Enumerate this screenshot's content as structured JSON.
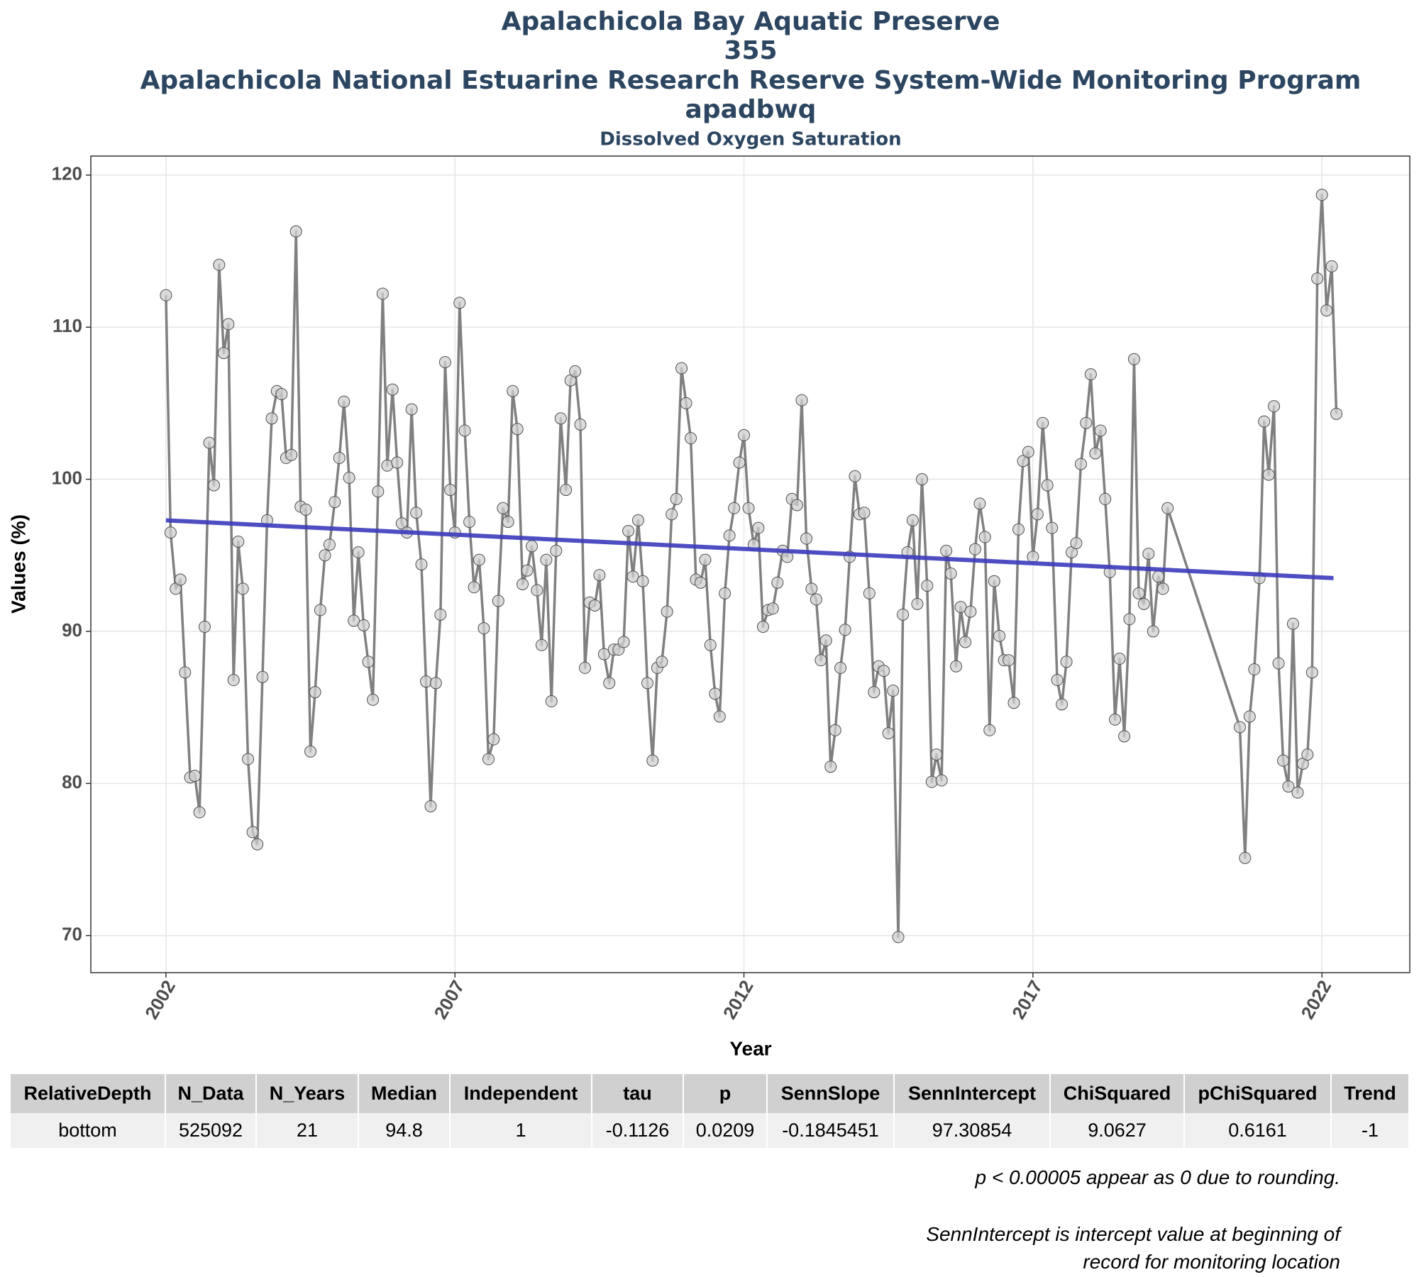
{
  "chart_data": {
    "type": "line",
    "title": [
      "Apalachicola Bay Aquatic Preserve",
      "355",
      "Apalachicola National Estuarine Research Reserve System-Wide Monitoring Program",
      "apadbwq"
    ],
    "subtitle": "Dissolved Oxygen Saturation",
    "xlabel": "Year",
    "ylabel": "Values (%)",
    "xlim": [
      2000.7,
      2023.52
    ],
    "ylim": [
      67.56,
      121.25
    ],
    "xticks": [
      2002,
      2007,
      2012,
      2017,
      2022
    ],
    "yticks": [
      70,
      80,
      90,
      100,
      110,
      120
    ],
    "grid": true,
    "series": [
      {
        "color": "#808080",
        "marker_fill": "#cfcfcf",
        "marker_stroke": "#505050",
        "x": [
          2002,
          2002.08,
          2002.17,
          2002.25,
          2002.33,
          2002.42,
          2002.5,
          2002.58,
          2002.67,
          2002.75,
          2002.83,
          2002.92,
          2003,
          2003.08,
          2003.17,
          2003.25,
          2003.33,
          2003.42,
          2003.5,
          2003.58,
          2003.67,
          2003.75,
          2003.83,
          2003.92,
          2004,
          2004.08,
          2004.17,
          2004.25,
          2004.33,
          2004.42,
          2004.5,
          2004.58,
          2004.67,
          2004.75,
          2004.83,
          2004.92,
          2005,
          2005.08,
          2005.17,
          2005.25,
          2005.33,
          2005.42,
          2005.5,
          2005.58,
          2005.67,
          2005.75,
          2005.83,
          2005.92,
          2006,
          2006.08,
          2006.17,
          2006.25,
          2006.33,
          2006.42,
          2006.5,
          2006.58,
          2006.67,
          2006.75,
          2006.83,
          2006.92,
          2007,
          2007.08,
          2007.17,
          2007.25,
          2007.33,
          2007.42,
          2007.5,
          2007.58,
          2007.67,
          2007.75,
          2007.83,
          2007.92,
          2008,
          2008.08,
          2008.17,
          2008.25,
          2008.33,
          2008.42,
          2008.5,
          2008.58,
          2008.67,
          2008.75,
          2008.83,
          2008.92,
          2009,
          2009.08,
          2009.17,
          2009.25,
          2009.33,
          2009.42,
          2009.5,
          2009.58,
          2009.67,
          2009.75,
          2009.83,
          2009.92,
          2010,
          2010.08,
          2010.17,
          2010.25,
          2010.33,
          2010.42,
          2010.5,
          2010.58,
          2010.67,
          2010.75,
          2010.83,
          2010.92,
          2011,
          2011.08,
          2011.17,
          2011.25,
          2011.33,
          2011.42,
          2011.5,
          2011.58,
          2011.67,
          2011.75,
          2011.83,
          2011.92,
          2012,
          2012.08,
          2012.17,
          2012.25,
          2012.33,
          2012.42,
          2012.5,
          2012.58,
          2012.67,
          2012.75,
          2012.83,
          2012.92,
          2013,
          2013.08,
          2013.17,
          2013.25,
          2013.33,
          2013.42,
          2013.5,
          2013.58,
          2013.67,
          2013.75,
          2013.83,
          2013.92,
          2014,
          2014.08,
          2014.17,
          2014.25,
          2014.33,
          2014.42,
          2014.5,
          2014.58,
          2014.67,
          2014.75,
          2014.83,
          2014.92,
          2015,
          2015.08,
          2015.17,
          2015.25,
          2015.33,
          2015.42,
          2015.5,
          2015.58,
          2015.67,
          2015.75,
          2015.83,
          2015.92,
          2016,
          2016.08,
          2016.17,
          2016.25,
          2016.33,
          2016.42,
          2016.5,
          2016.58,
          2016.67,
          2016.75,
          2016.83,
          2016.92,
          2017,
          2017.08,
          2017.17,
          2017.25,
          2017.33,
          2017.42,
          2017.5,
          2017.58,
          2017.67,
          2017.75,
          2017.83,
          2017.92,
          2018,
          2018.08,
          2018.17,
          2018.25,
          2018.33,
          2018.42,
          2018.5,
          2018.58,
          2018.67,
          2018.75,
          2018.83,
          2018.92,
          2019,
          2019.08,
          2019.17,
          2019.25,
          2019.33,
          2020.58,
          2020.67,
          2020.75,
          2020.83,
          2020.92,
          2021,
          2021.08,
          2021.17,
          2021.25,
          2021.33,
          2021.42,
          2021.5,
          2021.58,
          2021.67,
          2021.75,
          2021.83,
          2021.92,
          2022,
          2022.08,
          2022.17,
          2022.25
        ],
        "values": [
          112.1,
          96.5,
          92.8,
          93.4,
          87.3,
          80.4,
          80.5,
          78.1,
          90.3,
          102.4,
          99.6,
          114.1,
          108.3,
          110.2,
          86.8,
          95.9,
          92.8,
          81.6,
          76.8,
          76.0,
          87.0,
          97.3,
          104.0,
          105.8,
          105.6,
          101.4,
          101.6,
          116.3,
          98.2,
          98.0,
          82.1,
          86.0,
          91.4,
          95.0,
          95.7,
          98.5,
          101.4,
          105.1,
          100.1,
          90.7,
          95.2,
          90.4,
          88.0,
          85.5,
          99.2,
          112.2,
          100.9,
          105.9,
          101.1,
          97.1,
          96.5,
          104.6,
          97.8,
          94.4,
          86.7,
          78.5,
          86.6,
          91.1,
          107.7,
          99.3,
          96.5,
          111.6,
          103.2,
          97.2,
          92.9,
          94.7,
          90.2,
          81.6,
          82.9,
          92.0,
          98.1,
          97.2,
          105.8,
          103.3,
          93.1,
          94.0,
          95.6,
          92.7,
          89.1,
          94.7,
          85.4,
          95.3,
          104.0,
          99.3,
          106.5,
          107.1,
          103.6,
          87.6,
          91.9,
          91.7,
          93.7,
          88.5,
          86.6,
          88.8,
          88.8,
          89.3,
          96.6,
          93.6,
          97.3,
          93.3,
          86.6,
          81.5,
          87.6,
          88.0,
          91.3,
          97.7,
          98.7,
          107.3,
          105.0,
          102.7,
          93.4,
          93.2,
          94.7,
          89.1,
          85.9,
          84.4,
          92.5,
          96.3,
          98.1,
          101.1,
          102.9,
          98.1,
          95.7,
          96.8,
          90.3,
          91.4,
          91.5,
          93.2,
          95.3,
          94.9,
          98.7,
          98.3,
          105.2,
          96.1,
          92.8,
          92.1,
          88.1,
          89.4,
          81.1,
          83.5,
          87.6,
          90.1,
          94.9,
          100.2,
          97.7,
          97.8,
          92.5,
          86.0,
          87.7,
          87.4,
          83.3,
          86.1,
          69.9,
          91.1,
          95.2,
          97.3,
          91.8,
          100.0,
          93.0,
          80.1,
          81.9,
          80.2,
          95.3,
          93.8,
          87.7,
          91.6,
          89.3,
          91.3,
          95.4,
          98.4,
          96.2,
          83.5,
          93.3,
          89.7,
          88.1,
          88.1,
          85.3,
          96.7,
          101.2,
          101.8,
          94.9,
          97.7,
          103.7,
          99.6,
          96.8,
          86.8,
          85.2,
          88.0,
          95.2,
          95.8,
          101.0,
          103.7,
          106.9,
          101.7,
          103.2,
          98.7,
          93.9,
          84.2,
          88.2,
          83.1,
          90.8,
          107.9,
          92.5,
          91.8,
          95.1,
          90.0,
          93.6,
          92.8,
          98.1,
          83.7,
          75.1,
          84.4,
          87.5,
          93.5,
          103.8,
          100.3,
          104.8,
          87.9,
          81.5,
          79.8,
          90.5,
          79.4,
          81.3,
          81.9,
          87.3,
          113.2,
          118.7,
          111.1,
          114.0,
          104.3
        ]
      }
    ],
    "trend": {
      "color": "#3b3bbd",
      "x": [
        2002,
        2022.2
      ],
      "values": [
        97.3,
        93.5
      ]
    }
  },
  "table": {
    "header": [
      "RelativeDepth",
      "N_Data",
      "N_Years",
      "Median",
      "Independent",
      "tau",
      "p",
      "SennSlope",
      "SennIntercept",
      "ChiSquared",
      "pChiSquared",
      "Trend"
    ],
    "rows": [
      [
        "bottom",
        "525092",
        "21",
        "94.8",
        "1",
        "-0.1126",
        "0.0209",
        "-0.1845451",
        "97.30854",
        "9.0627",
        "0.6161",
        "-1"
      ]
    ]
  },
  "notes": [
    "p < 0.00005 appear as 0 due to rounding.",
    "SennIntercept is intercept value at beginning of",
    "record for monitoring location"
  ]
}
